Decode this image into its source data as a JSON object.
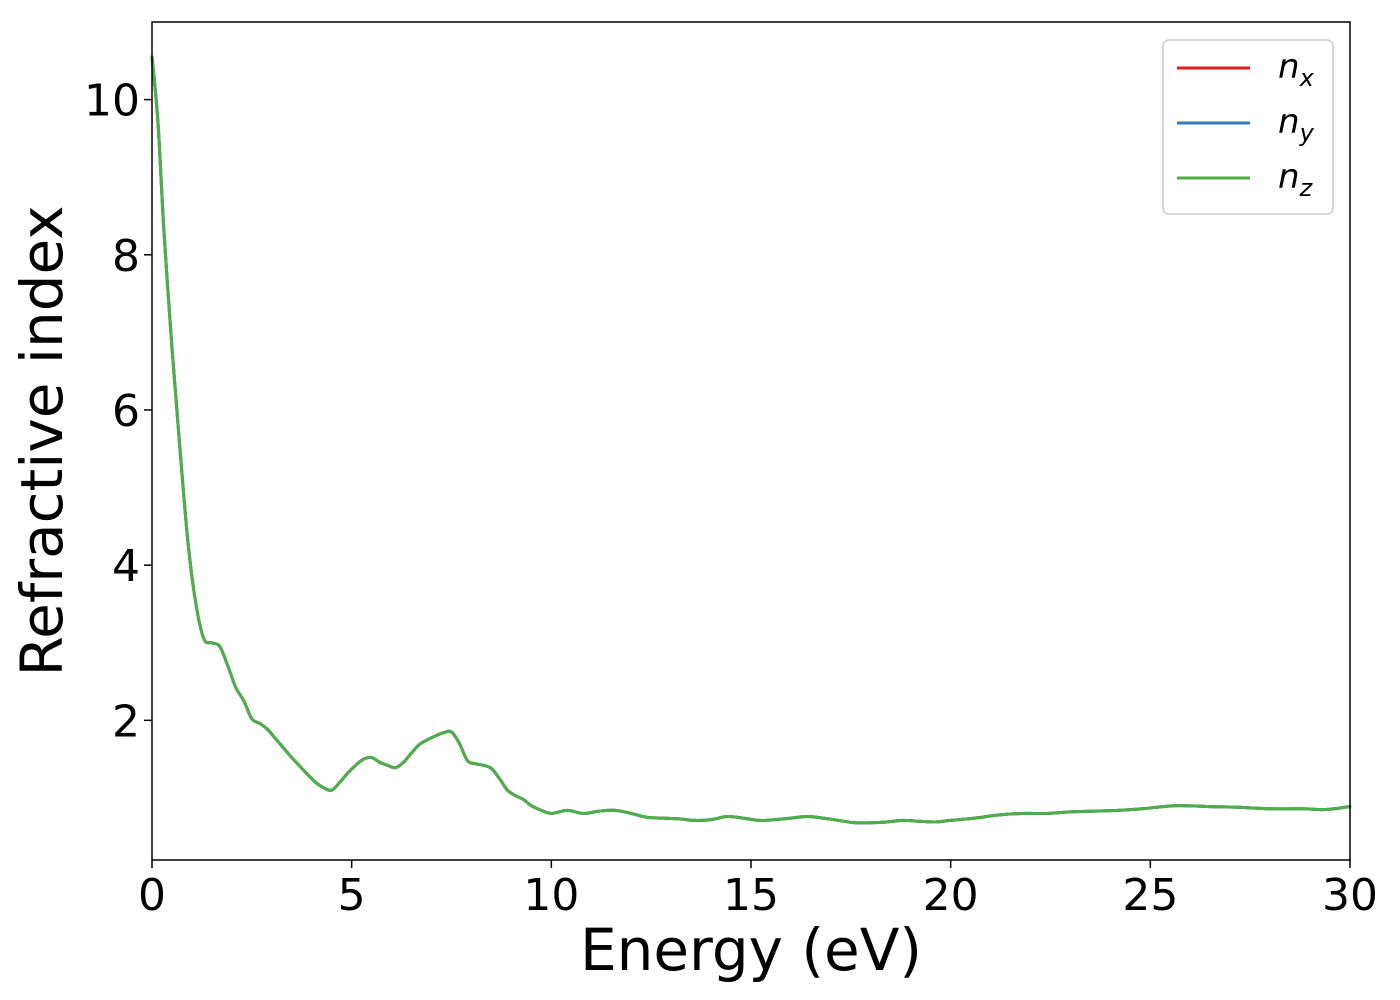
{
  "chart_data": {
    "type": "line",
    "title": "",
    "xlabel": "Energy (eV)",
    "ylabel": "Refractive index",
    "xlim": [
      0,
      30
    ],
    "ylim": [
      0.2,
      11.0
    ],
    "xticks": [
      0,
      5,
      10,
      15,
      20,
      25,
      30
    ],
    "yticks": [
      2,
      4,
      6,
      8,
      10
    ],
    "grid": false,
    "legend_position": "top-right",
    "series": [
      {
        "name": "n_x",
        "legend_base": "n",
        "legend_sub": "x",
        "color": "#e41a1c",
        "x": [
          0,
          0.15,
          0.3,
          0.5,
          0.7,
          0.9,
          1.1,
          1.3,
          1.5,
          1.7,
          1.9,
          2.1,
          2.3,
          2.5,
          2.7,
          2.9,
          3.1,
          3.3,
          3.5,
          3.7,
          3.9,
          4.1,
          4.3,
          4.5,
          4.7,
          4.9,
          5.1,
          5.3,
          5.5,
          5.7,
          5.9,
          6.1,
          6.3,
          6.5,
          6.7,
          6.9,
          7.1,
          7.3,
          7.5,
          7.7,
          7.9,
          8.1,
          8.3,
          8.5,
          8.7,
          8.9,
          9.1,
          9.3,
          9.5,
          9.7,
          10.0,
          10.4,
          10.8,
          11.2,
          11.6,
          12.0,
          12.4,
          12.8,
          13.2,
          13.6,
          14.0,
          14.4,
          14.8,
          15.2,
          15.6,
          16.0,
          16.4,
          16.8,
          17.2,
          17.6,
          18.0,
          18.4,
          18.8,
          19.2,
          19.6,
          20.0,
          20.6,
          21.2,
          21.8,
          22.4,
          23.0,
          23.6,
          24.2,
          24.8,
          25.6,
          26.4,
          27.2,
          28.0,
          28.8,
          29.4,
          30.0
        ],
        "y": [
          10.55,
          9.7,
          8.3,
          6.8,
          5.5,
          4.3,
          3.5,
          3.05,
          3.0,
          2.95,
          2.7,
          2.42,
          2.25,
          2.02,
          1.96,
          1.88,
          1.76,
          1.64,
          1.52,
          1.41,
          1.3,
          1.2,
          1.13,
          1.1,
          1.2,
          1.32,
          1.42,
          1.5,
          1.52,
          1.46,
          1.42,
          1.39,
          1.46,
          1.58,
          1.69,
          1.75,
          1.8,
          1.84,
          1.85,
          1.7,
          1.48,
          1.44,
          1.42,
          1.38,
          1.25,
          1.1,
          1.03,
          0.98,
          0.9,
          0.85,
          0.8,
          0.84,
          0.8,
          0.83,
          0.84,
          0.8,
          0.75,
          0.74,
          0.73,
          0.71,
          0.72,
          0.76,
          0.74,
          0.71,
          0.72,
          0.74,
          0.76,
          0.74,
          0.71,
          0.68,
          0.68,
          0.69,
          0.71,
          0.7,
          0.69,
          0.71,
          0.74,
          0.78,
          0.8,
          0.8,
          0.82,
          0.83,
          0.84,
          0.86,
          0.9,
          0.89,
          0.88,
          0.86,
          0.86,
          0.85,
          0.89
        ]
      },
      {
        "name": "n_y",
        "legend_base": "n",
        "legend_sub": "y",
        "color": "#377eb8",
        "x": [
          0,
          0.15,
          0.3,
          0.5,
          0.7,
          0.9,
          1.1,
          1.3,
          1.5,
          1.7,
          1.9,
          2.1,
          2.3,
          2.5,
          2.7,
          2.9,
          3.1,
          3.3,
          3.5,
          3.7,
          3.9,
          4.1,
          4.3,
          4.5,
          4.7,
          4.9,
          5.1,
          5.3,
          5.5,
          5.7,
          5.9,
          6.1,
          6.3,
          6.5,
          6.7,
          6.9,
          7.1,
          7.3,
          7.5,
          7.7,
          7.9,
          8.1,
          8.3,
          8.5,
          8.7,
          8.9,
          9.1,
          9.3,
          9.5,
          9.7,
          10.0,
          10.4,
          10.8,
          11.2,
          11.6,
          12.0,
          12.4,
          12.8,
          13.2,
          13.6,
          14.0,
          14.4,
          14.8,
          15.2,
          15.6,
          16.0,
          16.4,
          16.8,
          17.2,
          17.6,
          18.0,
          18.4,
          18.8,
          19.2,
          19.6,
          20.0,
          20.6,
          21.2,
          21.8,
          22.4,
          23.0,
          23.6,
          24.2,
          24.8,
          25.6,
          26.4,
          27.2,
          28.0,
          28.8,
          29.4,
          30.0
        ],
        "y": [
          10.55,
          9.7,
          8.3,
          6.8,
          5.5,
          4.3,
          3.5,
          3.05,
          3.0,
          2.95,
          2.7,
          2.42,
          2.25,
          2.02,
          1.96,
          1.88,
          1.76,
          1.64,
          1.52,
          1.41,
          1.3,
          1.2,
          1.13,
          1.1,
          1.2,
          1.32,
          1.42,
          1.5,
          1.52,
          1.46,
          1.42,
          1.39,
          1.46,
          1.58,
          1.69,
          1.75,
          1.8,
          1.84,
          1.85,
          1.7,
          1.48,
          1.44,
          1.42,
          1.38,
          1.25,
          1.1,
          1.03,
          0.98,
          0.9,
          0.85,
          0.8,
          0.84,
          0.8,
          0.83,
          0.84,
          0.8,
          0.75,
          0.74,
          0.73,
          0.71,
          0.72,
          0.76,
          0.74,
          0.71,
          0.72,
          0.74,
          0.76,
          0.74,
          0.71,
          0.68,
          0.68,
          0.69,
          0.71,
          0.7,
          0.69,
          0.71,
          0.74,
          0.78,
          0.8,
          0.8,
          0.82,
          0.83,
          0.84,
          0.86,
          0.9,
          0.89,
          0.88,
          0.86,
          0.86,
          0.85,
          0.89
        ]
      },
      {
        "name": "n_z",
        "legend_base": "n",
        "legend_sub": "z",
        "color": "#4daf4a",
        "x": [
          0,
          0.15,
          0.3,
          0.5,
          0.7,
          0.9,
          1.1,
          1.3,
          1.5,
          1.7,
          1.9,
          2.1,
          2.3,
          2.5,
          2.7,
          2.9,
          3.1,
          3.3,
          3.5,
          3.7,
          3.9,
          4.1,
          4.3,
          4.5,
          4.7,
          4.9,
          5.1,
          5.3,
          5.5,
          5.7,
          5.9,
          6.1,
          6.3,
          6.5,
          6.7,
          6.9,
          7.1,
          7.3,
          7.5,
          7.7,
          7.9,
          8.1,
          8.3,
          8.5,
          8.7,
          8.9,
          9.1,
          9.3,
          9.5,
          9.7,
          10.0,
          10.4,
          10.8,
          11.2,
          11.6,
          12.0,
          12.4,
          12.8,
          13.2,
          13.6,
          14.0,
          14.4,
          14.8,
          15.2,
          15.6,
          16.0,
          16.4,
          16.8,
          17.2,
          17.6,
          18.0,
          18.4,
          18.8,
          19.2,
          19.6,
          20.0,
          20.6,
          21.2,
          21.8,
          22.4,
          23.0,
          23.6,
          24.2,
          24.8,
          25.6,
          26.4,
          27.2,
          28.0,
          28.8,
          29.4,
          30.0
        ],
        "y": [
          10.55,
          9.7,
          8.3,
          6.8,
          5.5,
          4.3,
          3.5,
          3.05,
          3.0,
          2.95,
          2.7,
          2.42,
          2.25,
          2.02,
          1.96,
          1.88,
          1.76,
          1.64,
          1.52,
          1.41,
          1.3,
          1.2,
          1.13,
          1.1,
          1.2,
          1.32,
          1.42,
          1.5,
          1.52,
          1.46,
          1.42,
          1.39,
          1.46,
          1.58,
          1.69,
          1.75,
          1.8,
          1.84,
          1.85,
          1.7,
          1.48,
          1.44,
          1.42,
          1.38,
          1.25,
          1.1,
          1.03,
          0.98,
          0.9,
          0.85,
          0.8,
          0.84,
          0.8,
          0.83,
          0.84,
          0.8,
          0.75,
          0.74,
          0.73,
          0.71,
          0.72,
          0.76,
          0.74,
          0.71,
          0.72,
          0.74,
          0.76,
          0.74,
          0.71,
          0.68,
          0.68,
          0.69,
          0.71,
          0.7,
          0.69,
          0.71,
          0.74,
          0.78,
          0.8,
          0.8,
          0.82,
          0.83,
          0.84,
          0.86,
          0.9,
          0.89,
          0.88,
          0.86,
          0.86,
          0.85,
          0.89
        ]
      }
    ]
  }
}
